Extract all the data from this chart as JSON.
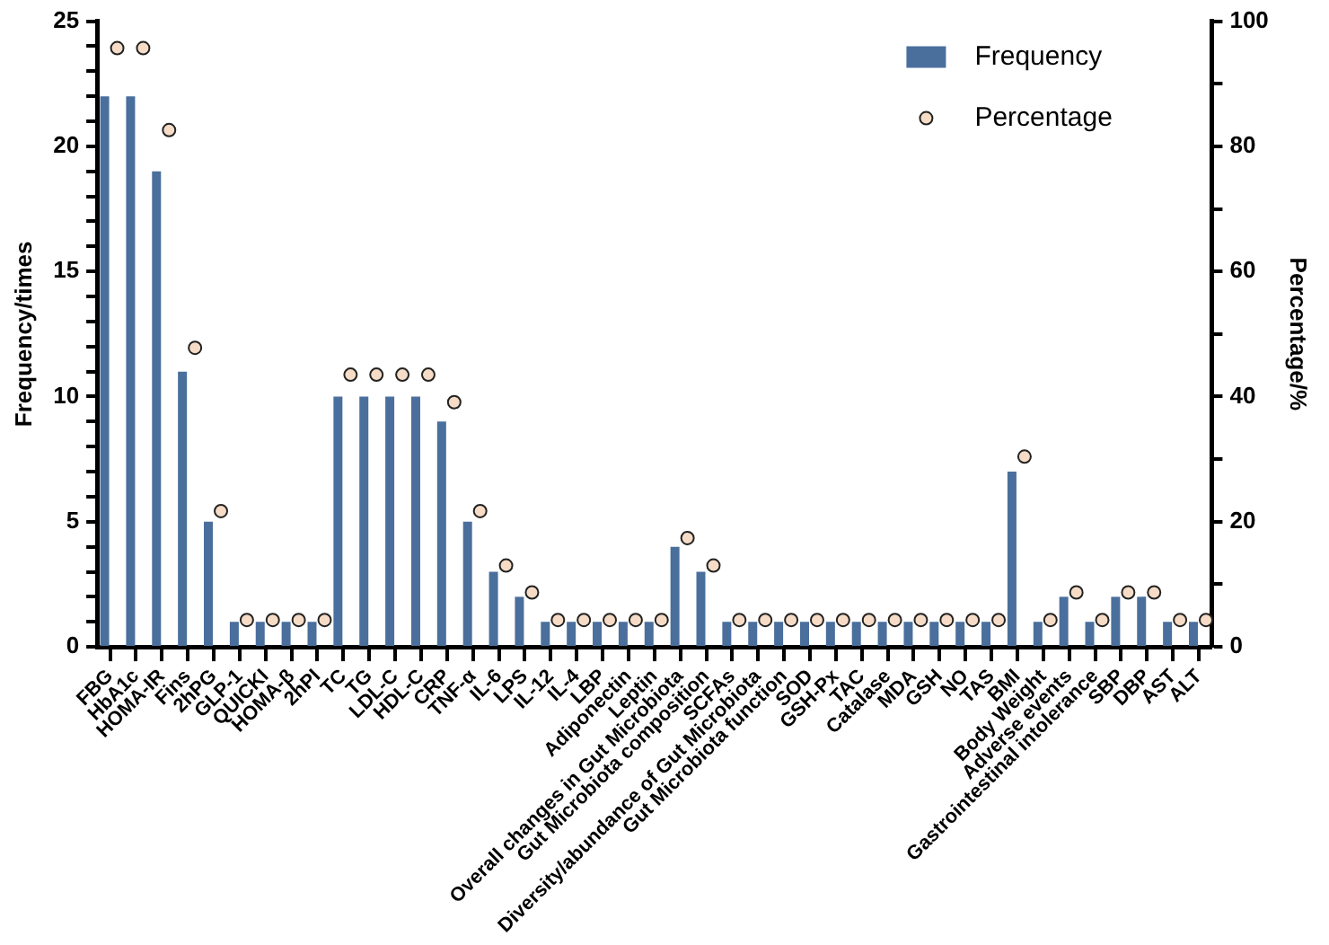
{
  "chart_data": {
    "type": "bar",
    "categories": [
      "FBG",
      "HbA1c",
      "HOMA-IR",
      "Fins",
      "2hPG",
      "GLP-1",
      "QUICKI",
      "HOMA-β",
      "2hPI",
      "TC",
      "TG",
      "LDL-C",
      "HDL-C",
      "CRP",
      "TNF-α",
      "IL-6",
      "LPS",
      "IL-12",
      "IL-4",
      "LBP",
      "Adiponectin",
      "Leptin",
      "Overall changes in Gut Microbiota",
      "Gut Microbiota composition",
      "SCFAs",
      "Diversity/abundance of Gut Microbiota",
      "Gut Microbiota function",
      "SOD",
      "GSH-Px",
      "TAC",
      "Catalase",
      "MDA",
      "GSH",
      "NO",
      "TAS",
      "BMI",
      "Body Weight",
      "Adverse events",
      "Gastrointestinal intolerance",
      "SBP",
      "DBP",
      "AST",
      "ALT"
    ],
    "series": [
      {
        "name": "Frequency",
        "color": "#4a6f9c",
        "values": [
          22,
          22,
          19,
          11,
          5,
          1,
          1,
          1,
          1,
          10,
          10,
          10,
          10,
          9,
          5,
          3,
          2,
          1,
          1,
          1,
          1,
          1,
          4,
          3,
          1,
          1,
          1,
          1,
          1,
          1,
          1,
          1,
          1,
          1,
          1,
          7,
          1,
          2,
          1,
          2,
          2,
          1,
          1
        ]
      },
      {
        "name": "Percentage",
        "type": "scatter",
        "axis": "y2",
        "color": "#f6dcc6",
        "values": [
          95.7,
          95.7,
          82.6,
          47.8,
          21.7,
          4.3,
          4.3,
          4.3,
          4.3,
          43.5,
          43.5,
          43.5,
          43.5,
          39.1,
          21.7,
          13,
          8.7,
          4.3,
          4.3,
          4.3,
          4.3,
          4.3,
          17.4,
          13,
          4.3,
          4.3,
          4.3,
          4.3,
          4.3,
          4.3,
          4.3,
          4.3,
          4.3,
          4.3,
          4.3,
          30.4,
          4.3,
          8.7,
          4.3,
          8.7,
          8.7,
          4.3,
          4.3
        ]
      }
    ],
    "ylabel": "Frequency/times",
    "y2label": "Percentage/%",
    "ylim": [
      0,
      25
    ],
    "yticks": [
      0,
      {
        "value": 1,
        "label": null
      },
      {
        "value": 2,
        "label": null
      },
      {
        "value": 3,
        "label": null
      },
      {
        "value": 4,
        "label": null
      },
      5,
      {
        "value": 6,
        "label": null
      },
      {
        "value": 7,
        "label": null
      },
      {
        "value": 8,
        "label": null
      },
      {
        "value": 9,
        "label": null
      },
      10,
      {
        "value": 11,
        "label": null
      },
      {
        "value": 12,
        "label": null
      },
      {
        "value": 13,
        "label": null
      },
      {
        "value": 14,
        "label": null
      },
      15,
      {
        "value": 16,
        "label": null
      },
      {
        "value": 17,
        "label": null
      },
      {
        "value": 18,
        "label": null
      },
      {
        "value": 19,
        "label": null
      },
      20,
      {
        "value": 21,
        "label": null
      },
      {
        "value": 22,
        "label": null
      },
      {
        "value": 23,
        "label": null
      },
      {
        "value": 24,
        "label": null
      },
      25
    ],
    "y2lim": [
      0,
      100
    ],
    "y2ticks": [
      0,
      {
        "value": 10,
        "label": null
      },
      20,
      {
        "value": 30,
        "label": null
      },
      40,
      {
        "value": 50,
        "label": null
      },
      60,
      {
        "value": 70,
        "label": null
      },
      80,
      {
        "value": 90,
        "label": null
      },
      100
    ],
    "marker": "circle",
    "grid": false,
    "legend": "top right"
  }
}
